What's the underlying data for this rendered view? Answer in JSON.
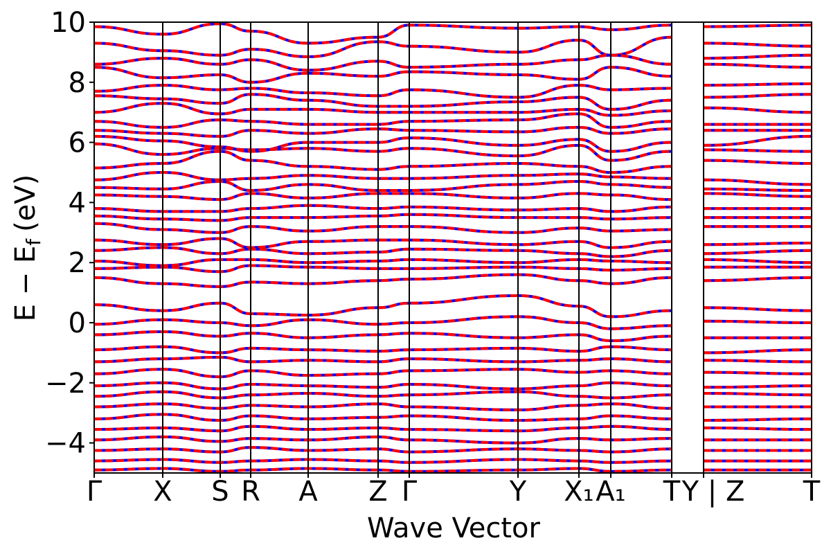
{
  "chart_data": {
    "type": "line",
    "title": "",
    "xlabel": "Wave Vector",
    "ylabel": "E − E",
    "ylabel_sub": "f",
    "ylabel_unit": "(eV)",
    "ylim": [
      -5,
      10
    ],
    "yticks": [
      {
        "value": 10,
        "label": "10"
      },
      {
        "value": 8,
        "label": "8"
      },
      {
        "value": 6,
        "label": "6"
      },
      {
        "value": 4,
        "label": "4"
      },
      {
        "value": 2,
        "label": "2"
      },
      {
        "value": 0,
        "label": "0"
      },
      {
        "value": -2,
        "label": "−2"
      },
      {
        "value": -4,
        "label": "−4"
      }
    ],
    "grid": false,
    "kpoints": [
      {
        "label": "Γ",
        "position": 0.0
      },
      {
        "label": "X",
        "position": 0.5
      },
      {
        "label": "S",
        "position": 0.5
      },
      {
        "label": "R",
        "position": 0.5
      },
      {
        "label": "A",
        "position": 0.5
      },
      {
        "label": "Z",
        "position": 0.5
      },
      {
        "label": "Γ",
        "position": 0.5
      },
      {
        "label": "Y",
        "position": 0.5
      },
      {
        "label": "X₁",
        "position": 0.5
      },
      {
        "label": "A₁",
        "position": 0.5
      },
      {
        "label": "T",
        "position": 0.5
      },
      {
        "label": "Y | Z",
        "position": 0.5
      },
      {
        "label": "T",
        "position": 0.5
      }
    ],
    "segment_breaks": [
      11
    ],
    "series": [
      {
        "name": "",
        "color": "#0000ff",
        "style": "solid"
      },
      {
        "name": "",
        "color": "#ff0000",
        "style": "dashed"
      }
    ],
    "bands": [
      [
        9.85,
        9.6,
        9.95,
        9.7,
        9.3,
        9.5,
        9.9,
        9.8,
        9.85,
        9.75,
        9.9,
        9.85,
        9.9
      ],
      [
        9.3,
        9.05,
        8.9,
        9.1,
        8.85,
        9.35,
        9.2,
        9.0,
        9.4,
        8.9,
        9.5,
        9.3,
        9.2
      ],
      [
        8.6,
        8.8,
        8.6,
        8.75,
        8.4,
        8.7,
        8.5,
        8.6,
        8.75,
        8.9,
        8.6,
        8.8,
        8.9
      ],
      [
        8.5,
        8.15,
        8.25,
        8.0,
        8.3,
        8.2,
        8.35,
        8.25,
        8.1,
        8.5,
        8.2,
        8.6,
        8.5
      ],
      [
        7.7,
        7.9,
        7.75,
        7.8,
        7.65,
        7.55,
        7.75,
        7.5,
        7.9,
        7.75,
        7.8,
        7.9,
        7.95
      ],
      [
        7.55,
        7.45,
        7.3,
        7.6,
        7.4,
        7.2,
        7.2,
        7.35,
        7.5,
        7.1,
        7.4,
        7.5,
        7.6
      ],
      [
        7.0,
        7.3,
        6.95,
        7.1,
        7.1,
        7.0,
        7.0,
        7.0,
        7.1,
        6.9,
        7.05,
        7.15,
        7.0
      ],
      [
        6.7,
        6.5,
        6.75,
        6.7,
        6.6,
        6.6,
        6.7,
        6.75,
        6.95,
        6.5,
        6.7,
        6.6,
        6.6
      ],
      [
        6.4,
        6.3,
        6.2,
        6.4,
        6.3,
        6.45,
        6.4,
        6.35,
        6.5,
        6.3,
        6.45,
        6.4,
        6.4
      ],
      [
        6.2,
        6.05,
        5.85,
        5.7,
        6.0,
        6.0,
        6.15,
        5.9,
        6.1,
        5.7,
        6.0,
        5.9,
        6.2
      ],
      [
        5.95,
        5.6,
        5.8,
        5.75,
        5.8,
        5.7,
        5.8,
        5.55,
        5.9,
        5.4,
        5.7,
        5.75,
        5.7
      ],
      [
        5.15,
        5.3,
        5.7,
        5.4,
        5.2,
        5.1,
        5.2,
        5.3,
        5.2,
        5.0,
        5.2,
        5.4,
        5.3
      ],
      [
        4.75,
        5.0,
        4.75,
        4.8,
        4.9,
        4.8,
        4.8,
        4.9,
        4.95,
        4.85,
        4.8,
        4.75,
        4.6
      ],
      [
        4.5,
        4.45,
        4.7,
        4.4,
        4.6,
        4.4,
        4.4,
        4.6,
        4.7,
        4.6,
        4.5,
        4.45,
        4.4
      ],
      [
        4.25,
        4.2,
        4.1,
        4.3,
        4.15,
        4.3,
        4.3,
        4.15,
        4.3,
        4.25,
        4.1,
        4.3,
        4.2
      ],
      [
        3.8,
        3.7,
        3.7,
        3.8,
        3.9,
        3.8,
        3.85,
        3.75,
        3.8,
        3.7,
        3.85,
        3.8,
        3.8
      ],
      [
        3.55,
        3.45,
        3.4,
        3.5,
        3.5,
        3.55,
        3.6,
        3.5,
        3.5,
        3.45,
        3.5,
        3.5,
        3.5
      ],
      [
        3.3,
        3.1,
        3.0,
        3.2,
        3.05,
        3.2,
        3.2,
        3.0,
        3.15,
        3.05,
        3.1,
        3.2,
        3.2
      ],
      [
        2.75,
        2.6,
        2.8,
        2.5,
        2.7,
        2.75,
        2.75,
        2.6,
        2.7,
        2.5,
        2.7,
        2.6,
        2.65
      ],
      [
        2.4,
        2.5,
        2.3,
        2.45,
        2.3,
        2.35,
        2.45,
        2.4,
        2.3,
        2.2,
        2.4,
        2.3,
        2.4
      ],
      [
        2.05,
        1.9,
        2.1,
        2.1,
        2.0,
        2.05,
        2.1,
        2.0,
        2.1,
        2.05,
        2.0,
        2.1,
        2.0
      ],
      [
        1.8,
        1.85,
        1.7,
        1.9,
        1.85,
        1.8,
        1.8,
        1.85,
        1.8,
        1.75,
        1.8,
        1.85,
        1.85
      ],
      [
        1.5,
        1.3,
        1.2,
        1.35,
        1.3,
        1.4,
        1.45,
        1.6,
        1.4,
        1.3,
        1.5,
        1.4,
        1.5
      ],
      [
        0.6,
        0.4,
        0.65,
        0.3,
        0.25,
        0.5,
        0.65,
        0.9,
        0.55,
        0.2,
        0.4,
        0.5,
        0.4
      ],
      [
        -0.05,
        0.1,
        0.0,
        -0.1,
        0.1,
        -0.05,
        0.0,
        0.2,
        0.0,
        -0.2,
        -0.1,
        0.05,
        0.0
      ],
      [
        -0.4,
        -0.3,
        -0.45,
        -0.35,
        -0.5,
        -0.4,
        -0.35,
        -0.5,
        -0.4,
        -0.6,
        -0.45,
        -0.5,
        -0.5
      ],
      [
        -0.9,
        -0.8,
        -1.0,
        -0.85,
        -0.9,
        -0.95,
        -0.9,
        -0.85,
        -0.95,
        -0.8,
        -0.9,
        -1.0,
        -0.9
      ],
      [
        -1.3,
        -1.2,
        -1.15,
        -1.3,
        -1.25,
        -1.3,
        -1.2,
        -1.3,
        -1.25,
        -1.2,
        -1.3,
        -1.25,
        -1.3
      ],
      [
        -1.7,
        -1.55,
        -1.8,
        -1.6,
        -1.75,
        -1.7,
        -1.6,
        -1.55,
        -1.65,
        -1.6,
        -1.7,
        -1.65,
        -1.7
      ],
      [
        -2.1,
        -2.0,
        -2.2,
        -2.05,
        -2.1,
        -2.15,
        -2.05,
        -2.2,
        -2.1,
        -2.0,
        -2.1,
        -2.15,
        -2.1
      ],
      [
        -2.45,
        -2.3,
        -2.5,
        -2.4,
        -2.35,
        -2.45,
        -2.4,
        -2.3,
        -2.45,
        -2.5,
        -2.4,
        -2.35,
        -2.4
      ],
      [
        -2.8,
        -2.7,
        -2.85,
        -2.75,
        -2.8,
        -2.7,
        -2.8,
        -2.9,
        -2.75,
        -2.7,
        -2.85,
        -2.8,
        -2.8
      ],
      [
        -3.2,
        -3.05,
        -3.25,
        -3.1,
        -3.2,
        -3.15,
        -3.1,
        -3.25,
        -3.2,
        -3.1,
        -3.2,
        -3.25,
        -3.2
      ],
      [
        -3.55,
        -3.5,
        -3.6,
        -3.45,
        -3.55,
        -3.5,
        -3.55,
        -3.6,
        -3.5,
        -3.45,
        -3.55,
        -3.5,
        -3.55
      ],
      [
        -3.9,
        -3.8,
        -3.95,
        -3.85,
        -3.9,
        -3.8,
        -3.9,
        -4.0,
        -3.85,
        -3.9,
        -3.85,
        -3.9,
        -3.9
      ],
      [
        -4.25,
        -4.2,
        -4.3,
        -4.15,
        -4.25,
        -4.2,
        -4.3,
        -4.2,
        -4.25,
        -4.3,
        -4.2,
        -4.25,
        -4.25
      ],
      [
        -4.6,
        -4.55,
        -4.65,
        -4.6,
        -4.55,
        -4.6,
        -4.65,
        -4.55,
        -4.6,
        -4.65,
        -4.6,
        -4.6,
        -4.6
      ],
      [
        -4.9,
        -4.85,
        -4.95,
        -4.9,
        -4.85,
        -4.9,
        -4.95,
        -4.9,
        -4.85,
        -4.95,
        -4.9,
        -4.9,
        -4.9
      ]
    ]
  }
}
